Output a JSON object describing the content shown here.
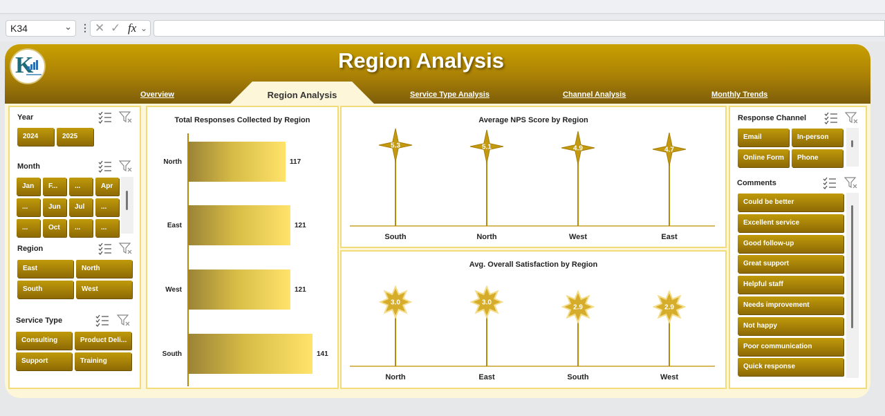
{
  "formula_bar": {
    "cell_ref": "K34",
    "fx_label": "fx",
    "formula": ""
  },
  "dashboard": {
    "title": "Region Analysis",
    "tabs": [
      {
        "label": "Overview",
        "active": false
      },
      {
        "label": "Region Analysis",
        "active": true
      },
      {
        "label": "Service Type  Analysis",
        "active": false
      },
      {
        "label": "Channel  Analysis",
        "active": false
      },
      {
        "label": "Monthly Trends",
        "active": false
      }
    ],
    "accent_color": "#a98006"
  },
  "slicers": {
    "year": {
      "title": "Year",
      "items": [
        "2024",
        "2025"
      ]
    },
    "month": {
      "title": "Month",
      "items": [
        "Jan",
        "F...",
        "...",
        "Apr",
        "...",
        "Jun",
        "Jul",
        "...",
        "...",
        "Oct",
        "...",
        "..."
      ]
    },
    "region": {
      "title": "Region",
      "items": [
        "East",
        "North",
        "South",
        "West"
      ]
    },
    "service_type": {
      "title": "Service Type",
      "items": [
        "Consulting",
        "Product Deli...",
        "Support",
        "Training"
      ]
    },
    "response_channel": {
      "title": "Response Channel",
      "items": [
        "Email",
        "In-person",
        "Online Form",
        "Phone"
      ]
    },
    "comments": {
      "title": "Comments",
      "items": [
        "Could be better",
        "Excellent service",
        "Good follow-up",
        "Great support",
        "Helpful staff",
        "Needs improvement",
        "Not happy",
        "Poor communication",
        "Quick response"
      ]
    }
  },
  "chart_data": [
    {
      "type": "bar",
      "title": "Total Responses Collected by Region",
      "orientation": "horizontal",
      "categories": [
        "North",
        "East",
        "West",
        "South"
      ],
      "values": [
        117,
        121,
        121,
        141
      ],
      "xlim": [
        0,
        150
      ]
    },
    {
      "type": "scatter",
      "title": "Average NPS Score by Region",
      "marker": "4-point-star",
      "categories": [
        "South",
        "North",
        "West",
        "East"
      ],
      "values": [
        5.3,
        5.1,
        4.9,
        4.7
      ],
      "data_labels": [
        "5.3",
        "5.1",
        "4.9",
        "4.7"
      ]
    },
    {
      "type": "scatter",
      "title": "Avg. Overall Satisfaction by Region",
      "marker": "star-burst",
      "categories": [
        "North",
        "East",
        "South",
        "West"
      ],
      "values": [
        3.0,
        3.0,
        2.9,
        2.9
      ],
      "data_labels": [
        "3.0",
        "3.0",
        "2.9",
        "2.9"
      ]
    }
  ]
}
